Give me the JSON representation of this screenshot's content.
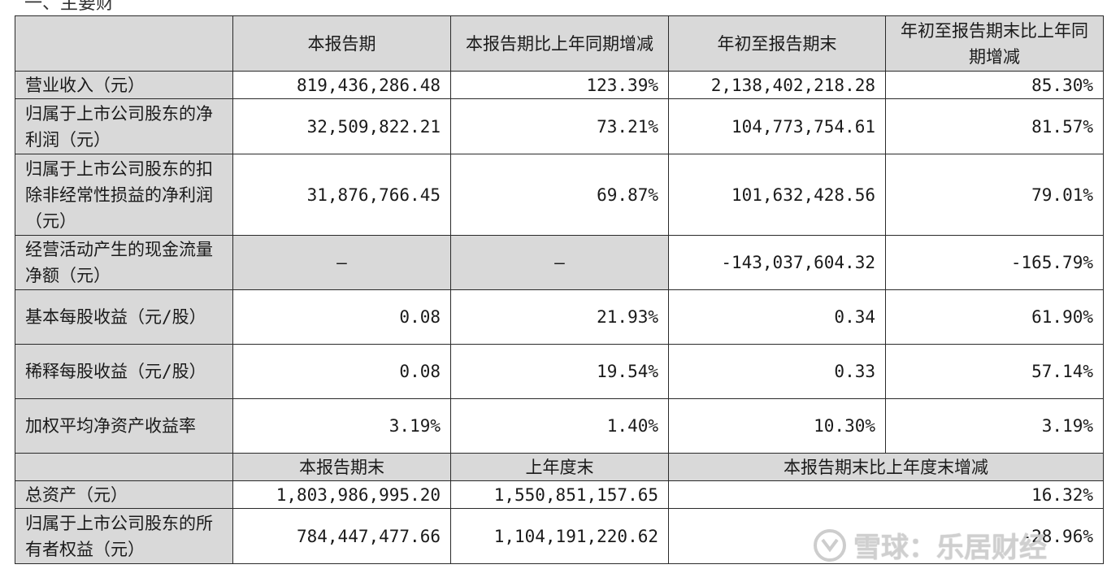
{
  "page_fragment": "一、主要财",
  "table": {
    "header": [
      "本报告期",
      "本报告期比上年同期增减",
      "年初至报告期末",
      "年初至报告期末比上年同期增减"
    ],
    "rows": [
      {
        "label": "营业收入（元）",
        "v1": "819,436,286.48",
        "v2": "123.39%",
        "v3": "2,138,402,218.28",
        "v4": "85.30%"
      },
      {
        "label": "归属于上市公司股东的净利润（元）",
        "v1": "32,509,822.21",
        "v2": "73.21%",
        "v3": "104,773,754.61",
        "v4": "81.57%"
      },
      {
        "label": "归属于上市公司股东的扣除非经常性损益的净利润（元）",
        "v1": "31,876,766.45",
        "v2": "69.87%",
        "v3": "101,632,428.56",
        "v4": "79.01%"
      },
      {
        "label": "经营活动产生的现金流量净额（元）",
        "v1": "—",
        "v2": "—",
        "v3": "-143,037,604.32",
        "v4": "-165.79%"
      },
      {
        "label": "基本每股收益（元/股）",
        "v1": "0.08",
        "v2": "21.93%",
        "v3": "0.34",
        "v4": "61.90%"
      },
      {
        "label": "稀释每股收益（元/股）",
        "v1": "0.08",
        "v2": "19.54%",
        "v3": "0.33",
        "v4": "57.14%"
      },
      {
        "label": "加权平均净资产收益率",
        "v1": "3.19%",
        "v2": "1.40%",
        "v3": "10.30%",
        "v4": "3.19%"
      }
    ],
    "header2": [
      "本报告期末",
      "上年度末",
      "本报告期末比上年度末增减"
    ],
    "rows2": [
      {
        "label": "总资产（元）",
        "v1": "1,803,986,995.20",
        "v2": "1,550,851,157.65",
        "v3": "16.32%"
      },
      {
        "label": "归属于上市公司股东的所有者权益（元）",
        "v1": "784,447,477.66",
        "v2": "1,104,191,220.62",
        "v3": "-28.96%"
      }
    ]
  },
  "watermark": {
    "text": "雪球：乐居财经",
    "icon": "xueqiu-logo-icon"
  }
}
